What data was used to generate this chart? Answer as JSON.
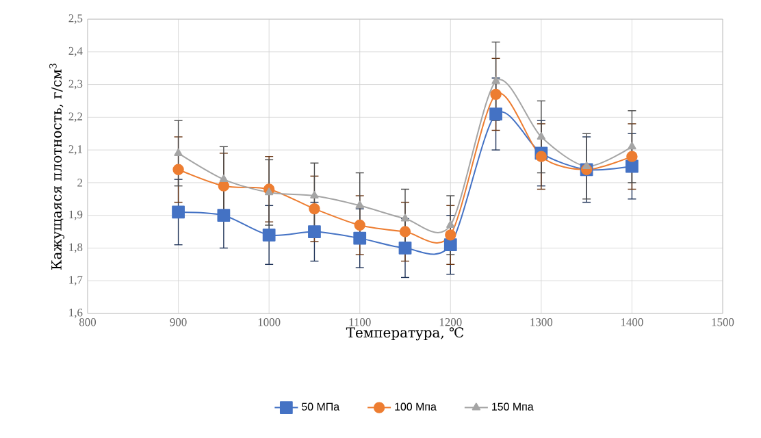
{
  "chart_data": {
    "type": "line",
    "xlabel": "Температура, ℃",
    "ylabel": "Кажущаяся плотность, г/см$^{3}$",
    "x": [
      900,
      950,
      1000,
      1050,
      1100,
      1150,
      1200,
      1250,
      1300,
      1350,
      1400
    ],
    "series": [
      {
        "name": "50 МПа",
        "color": "#4472c4",
        "marker": "square",
        "values": [
          1.91,
          1.9,
          1.84,
          1.85,
          1.83,
          1.8,
          1.81,
          2.21,
          2.09,
          2.04,
          2.05
        ],
        "errors": [
          0.1,
          0.1,
          0.09,
          0.09,
          0.09,
          0.09,
          0.09,
          0.11,
          0.1,
          0.1,
          0.1
        ]
      },
      {
        "name": "100 Мпа",
        "color": "#ed7d31",
        "marker": "circle",
        "values": [
          2.04,
          1.99,
          1.98,
          1.92,
          1.87,
          1.85,
          1.84,
          2.27,
          2.08,
          2.04,
          2.08
        ],
        "errors": [
          0.1,
          0.1,
          0.1,
          0.1,
          0.09,
          0.09,
          0.09,
          0.11,
          0.1,
          null,
          0.1
        ]
      },
      {
        "name": "150 Мпа",
        "color": "#a5a5a5",
        "marker": "triangle",
        "values": [
          2.09,
          2.01,
          1.97,
          1.96,
          1.93,
          1.89,
          1.87,
          2.31,
          2.14,
          2.05,
          2.11
        ],
        "errors": [
          0.1,
          0.1,
          0.1,
          0.1,
          0.1,
          0.09,
          0.09,
          0.12,
          0.11,
          0.1,
          0.11
        ]
      }
    ],
    "xlim": [
      800,
      1500
    ],
    "xticks": [
      800,
      900,
      1000,
      1100,
      1200,
      1300,
      1400,
      1500
    ],
    "ylim": [
      1.6,
      2.5
    ],
    "yticks": [
      {
        "value": 1.6,
        "label": "1,6"
      },
      {
        "value": 1.7,
        "label": "1,7"
      },
      {
        "value": 1.8,
        "label": "1,8"
      },
      {
        "value": 1.9,
        "label": "1,9"
      },
      {
        "value": 2.0,
        "label": "2"
      },
      {
        "value": 2.1,
        "label": "2,1"
      },
      {
        "value": 2.2,
        "label": "2,2"
      },
      {
        "value": 2.3,
        "label": "2,3"
      },
      {
        "value": 2.4,
        "label": "2,4"
      },
      {
        "value": 2.5,
        "label": "2,5"
      }
    ],
    "grid": true,
    "legend": "bottom",
    "line_style": "solid"
  }
}
